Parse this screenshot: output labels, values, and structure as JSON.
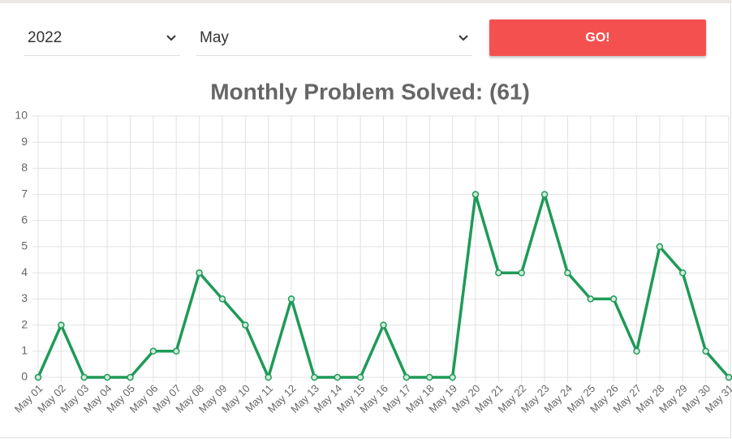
{
  "controls": {
    "year": "2022",
    "month": "May",
    "button": "GO!"
  },
  "chart_data": {
    "type": "line",
    "title": "Monthly Problem Solved: (61)",
    "categories": [
      "May 01",
      "May 02",
      "May 03",
      "May 04",
      "May 05",
      "May 06",
      "May 07",
      "May 08",
      "May 09",
      "May 10",
      "May 11",
      "May 12",
      "May 13",
      "May 14",
      "May 15",
      "May 16",
      "May 17",
      "May 18",
      "May 19",
      "May 20",
      "May 21",
      "May 22",
      "May 23",
      "May 24",
      "May 25",
      "May 26",
      "May 27",
      "May 28",
      "May 29",
      "May 30",
      "May 31"
    ],
    "values": [
      0,
      2,
      0,
      0,
      0,
      1,
      1,
      4,
      3,
      2,
      0,
      3,
      0,
      0,
      0,
      2,
      0,
      0,
      0,
      7,
      4,
      4,
      7,
      4,
      3,
      3,
      1,
      5,
      4,
      1,
      0
    ],
    "color": "#1e9a58",
    "ylim": [
      0,
      10
    ],
    "yticks": [
      0,
      1,
      2,
      3,
      4,
      5,
      6,
      7,
      8,
      9,
      10
    ],
    "grid": true
  }
}
